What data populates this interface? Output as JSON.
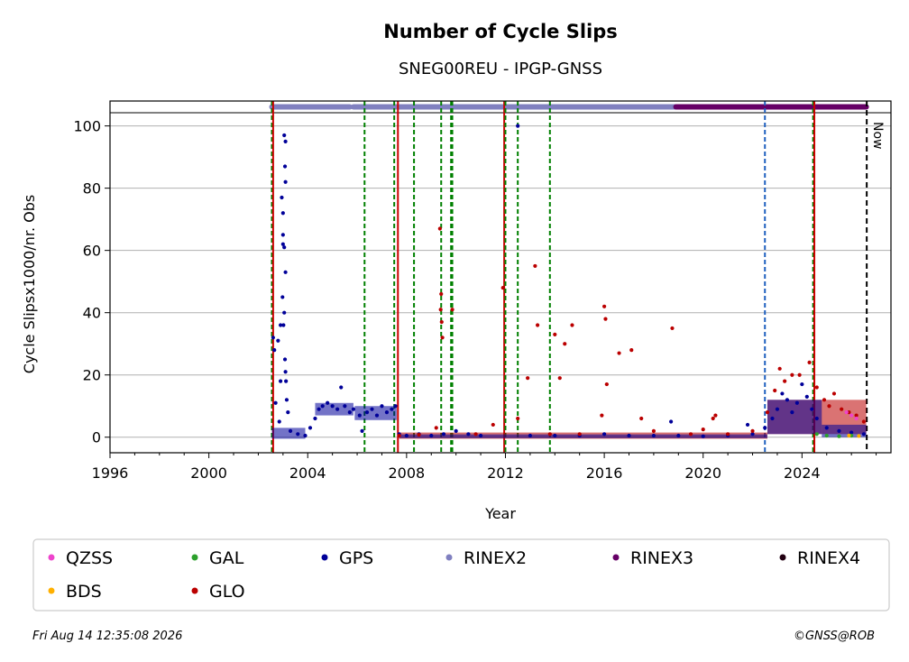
{
  "chart_data": {
    "type": "scatter",
    "title": "Number of Cycle Slips",
    "subtitle": "SNEG00REU - IPGP-GNSS",
    "xlabel": "Year",
    "ylabel": "Cycle Slipsx1000/nr. Obs",
    "xlim": [
      1996,
      2027.6
    ],
    "ylim": [
      -5,
      108
    ],
    "x_ticks": [
      1996,
      2000,
      2004,
      2008,
      2012,
      2016,
      2020,
      2024
    ],
    "y_ticks": [
      0,
      20,
      40,
      60,
      80,
      100
    ],
    "grid": "horizontal",
    "now_label": "Now",
    "now_x": 2026.62,
    "colors": {
      "QZSS": "#ee44cc",
      "GAL": "#2ca02c",
      "GPS": "#000099",
      "RINEX2": "#8080c0",
      "RINEX3": "#660066",
      "RINEX4": "#220011",
      "BDS": "#ffb000",
      "GLO": "#bb0000",
      "green_events": "#008000",
      "red_events": "#cc0000",
      "blue_events": "#1f5fbf"
    },
    "rinex_bar": [
      {
        "name": "RINEX2",
        "from": 2002.55,
        "to": 2005.7
      },
      {
        "name": "RINEX2",
        "from": 2005.85,
        "to": 2018.9
      },
      {
        "name": "RINEX3",
        "from": 2018.9,
        "to": 2026.6
      }
    ],
    "event_lines": [
      {
        "x": 2002.55,
        "color": "green",
        "style": "dashed"
      },
      {
        "x": 2002.6,
        "color": "red",
        "style": "solid"
      },
      {
        "x": 2006.3,
        "color": "green",
        "style": "dashed"
      },
      {
        "x": 2007.5,
        "color": "green",
        "style": "dashed"
      },
      {
        "x": 2007.65,
        "color": "red",
        "style": "solid"
      },
      {
        "x": 2008.3,
        "color": "green",
        "style": "dashed"
      },
      {
        "x": 2009.4,
        "color": "green",
        "style": "dashed"
      },
      {
        "x": 2009.8,
        "color": "green",
        "style": "dashed"
      },
      {
        "x": 2009.85,
        "color": "green",
        "style": "dashed"
      },
      {
        "x": 2011.95,
        "color": "red",
        "style": "solid"
      },
      {
        "x": 2012.0,
        "color": "green",
        "style": "dashed"
      },
      {
        "x": 2012.5,
        "color": "green",
        "style": "dashed"
      },
      {
        "x": 2013.8,
        "color": "green",
        "style": "dashed"
      },
      {
        "x": 2022.5,
        "color": "blue",
        "style": "dashed"
      },
      {
        "x": 2024.45,
        "color": "green",
        "style": "dashed"
      },
      {
        "x": 2024.5,
        "color": "red",
        "style": "solid"
      }
    ],
    "series": [
      {
        "name": "GPS",
        "points": [
          [
            2002.6,
            32
          ],
          [
            2002.65,
            28
          ],
          [
            2002.7,
            11
          ],
          [
            2002.8,
            31
          ],
          [
            2002.9,
            36
          ],
          [
            2002.95,
            77
          ],
          [
            2003.0,
            72
          ],
          [
            2003.05,
            97
          ],
          [
            2003.1,
            95
          ],
          [
            2003.0,
            65
          ],
          [
            2003.05,
            61
          ],
          [
            2003.1,
            53
          ],
          [
            2002.98,
            45
          ],
          [
            2003.02,
            36
          ],
          [
            2003.08,
            25
          ],
          [
            2003.1,
            21
          ],
          [
            2003.12,
            18
          ],
          [
            2003.15,
            12
          ],
          [
            2003.2,
            8
          ],
          [
            2003.05,
            40
          ],
          [
            2003.0,
            62
          ],
          [
            2003.08,
            87
          ],
          [
            2003.1,
            82
          ],
          [
            2002.9,
            18
          ],
          [
            2002.85,
            5
          ],
          [
            2003.3,
            2
          ],
          [
            2003.6,
            1
          ],
          [
            2003.9,
            0.5
          ],
          [
            2004.1,
            3
          ],
          [
            2004.3,
            6
          ],
          [
            2004.45,
            9
          ],
          [
            2004.6,
            10
          ],
          [
            2004.8,
            11
          ],
          [
            2005.0,
            10
          ],
          [
            2005.2,
            9
          ],
          [
            2005.35,
            16
          ],
          [
            2005.5,
            10
          ],
          [
            2005.7,
            8
          ],
          [
            2005.85,
            9
          ],
          [
            2006.1,
            7
          ],
          [
            2006.2,
            2
          ],
          [
            2006.4,
            8
          ],
          [
            2006.6,
            9
          ],
          [
            2006.8,
            7
          ],
          [
            2007.0,
            10
          ],
          [
            2007.2,
            8
          ],
          [
            2007.4,
            9
          ],
          [
            2007.55,
            10
          ],
          [
            2007.7,
            1
          ],
          [
            2008.0,
            0.5
          ],
          [
            2008.5,
            1
          ],
          [
            2009.0,
            0.5
          ],
          [
            2009.5,
            1
          ],
          [
            2010.0,
            2
          ],
          [
            2010.5,
            1
          ],
          [
            2011.0,
            0.5
          ],
          [
            2012.5,
            100
          ],
          [
            2013.0,
            0.5
          ],
          [
            2014.0,
            0.5
          ],
          [
            2015.0,
            0.5
          ],
          [
            2016.0,
            1
          ],
          [
            2017.0,
            0.5
          ],
          [
            2018.0,
            0.5
          ],
          [
            2018.7,
            5
          ],
          [
            2019.0,
            0.5
          ],
          [
            2020.0,
            0.3
          ],
          [
            2021.0,
            0.5
          ],
          [
            2021.8,
            4
          ],
          [
            2022.0,
            1
          ],
          [
            2022.5,
            3
          ],
          [
            2022.8,
            6
          ],
          [
            2023.0,
            9
          ],
          [
            2023.2,
            14
          ],
          [
            2023.4,
            12
          ],
          [
            2023.6,
            8
          ],
          [
            2023.8,
            11
          ],
          [
            2024.0,
            17
          ],
          [
            2024.2,
            13
          ],
          [
            2024.4,
            9
          ],
          [
            2024.6,
            6
          ],
          [
            2025.0,
            3
          ],
          [
            2025.5,
            2
          ],
          [
            2026.0,
            1.5
          ],
          [
            2026.5,
            1
          ]
        ]
      },
      {
        "name": "GLO",
        "points": [
          [
            2007.7,
            0.5
          ],
          [
            2008.5,
            0.8
          ],
          [
            2009.2,
            3
          ],
          [
            2009.35,
            67
          ],
          [
            2009.4,
            46
          ],
          [
            2009.38,
            41
          ],
          [
            2009.42,
            37
          ],
          [
            2009.45,
            32
          ],
          [
            2009.85,
            41
          ],
          [
            2010.8,
            1
          ],
          [
            2011.5,
            4
          ],
          [
            2011.9,
            48
          ],
          [
            2012.5,
            6
          ],
          [
            2012.9,
            19
          ],
          [
            2013.2,
            55
          ],
          [
            2013.3,
            36
          ],
          [
            2013.8,
            1
          ],
          [
            2014.0,
            33
          ],
          [
            2014.2,
            19
          ],
          [
            2014.4,
            30
          ],
          [
            2014.7,
            36
          ],
          [
            2015.0,
            1
          ],
          [
            2015.9,
            7
          ],
          [
            2016.0,
            42
          ],
          [
            2016.05,
            38
          ],
          [
            2016.1,
            17
          ],
          [
            2016.6,
            27
          ],
          [
            2017.1,
            28
          ],
          [
            2017.5,
            6
          ],
          [
            2018.0,
            2
          ],
          [
            2018.75,
            35
          ],
          [
            2019.5,
            1
          ],
          [
            2020.0,
            2.5
          ],
          [
            2020.4,
            6
          ],
          [
            2020.5,
            7
          ],
          [
            2021.0,
            1
          ],
          [
            2022.0,
            2
          ],
          [
            2022.6,
            8
          ],
          [
            2022.9,
            15
          ],
          [
            2023.1,
            22
          ],
          [
            2023.3,
            18
          ],
          [
            2023.6,
            20
          ],
          [
            2023.9,
            20
          ],
          [
            2024.3,
            24
          ],
          [
            2024.6,
            16
          ],
          [
            2024.9,
            12
          ],
          [
            2025.1,
            10
          ],
          [
            2025.3,
            14
          ],
          [
            2025.6,
            9
          ],
          [
            2025.9,
            8
          ],
          [
            2026.2,
            7
          ],
          [
            2026.5,
            5
          ]
        ]
      },
      {
        "name": "GAL",
        "points": [
          [
            2024.6,
            1
          ],
          [
            2025.0,
            0.5
          ],
          [
            2025.5,
            0.3
          ],
          [
            2026.0,
            0.5
          ]
        ]
      },
      {
        "name": "QZSS",
        "points": [
          [
            2025.8,
            8
          ],
          [
            2026.0,
            7
          ],
          [
            2026.2,
            6
          ]
        ]
      },
      {
        "name": "BDS",
        "points": [
          [
            2025.9,
            0.5
          ],
          [
            2026.3,
            0.4
          ]
        ]
      }
    ],
    "legend": {
      "placement": "bottom",
      "entries": [
        "QZSS",
        "GAL",
        "GPS",
        "RINEX2",
        "RINEX3",
        "RINEX4",
        "BDS",
        "GLO"
      ]
    }
  },
  "footer": {
    "timestamp": "Fri Aug 14 12:35:08 2026",
    "credit": "©GNSS@ROB"
  }
}
